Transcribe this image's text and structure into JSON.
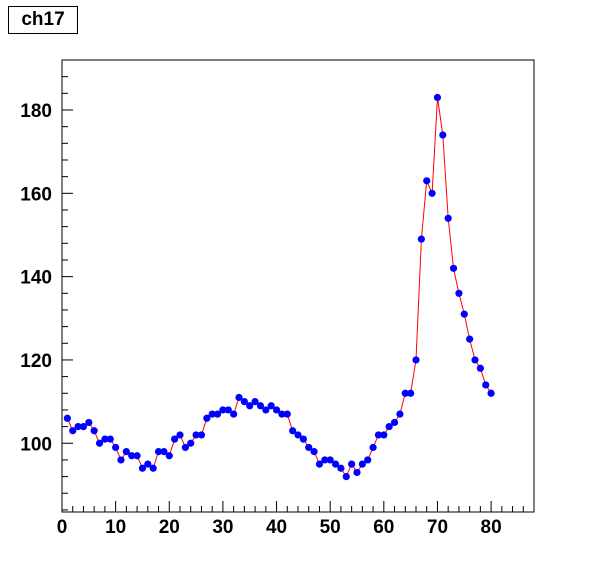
{
  "chart_data": {
    "type": "scatter",
    "title": "ch17",
    "xlabel": "",
    "ylabel": "",
    "xlim": [
      0,
      88
    ],
    "ylim": [
      83.5,
      192
    ],
    "x_ticks": [
      0,
      10,
      20,
      30,
      40,
      50,
      60,
      70,
      80
    ],
    "y_ticks": [
      100,
      120,
      140,
      160,
      180
    ],
    "grid": false,
    "legend": "none",
    "marker_color": "#0000ff",
    "line_color": "#ff0000",
    "series": [
      {
        "x": [
          1,
          2,
          3,
          4,
          5,
          6,
          7,
          8,
          9,
          10,
          11,
          12,
          13,
          14,
          15,
          16,
          17,
          18,
          19,
          20,
          21,
          22,
          23,
          24,
          25,
          26,
          27,
          28,
          29,
          30,
          31,
          32,
          33,
          34,
          35,
          36,
          37,
          38,
          39,
          40,
          41,
          42,
          43,
          44,
          45,
          46,
          47,
          48,
          49,
          50,
          51,
          52,
          53,
          54,
          55,
          56,
          57,
          58,
          59,
          60,
          61,
          62,
          63,
          64,
          65,
          66,
          67,
          68,
          69,
          70,
          71,
          72,
          73,
          74,
          75,
          76,
          77,
          78,
          79,
          80
        ],
        "values": [
          106,
          103,
          104,
          104,
          105,
          103,
          100,
          101,
          101,
          99,
          96,
          98,
          97,
          97,
          94,
          95,
          94,
          98,
          98,
          97,
          101,
          102,
          99,
          100,
          102,
          102,
          106,
          107,
          107,
          108,
          108,
          107,
          111,
          110,
          109,
          110,
          109,
          108,
          109,
          108,
          107,
          107,
          103,
          102,
          101,
          99,
          98,
          95,
          96,
          96,
          95,
          94,
          92,
          95,
          93,
          95,
          96,
          99,
          102,
          102,
          104,
          105,
          107,
          112,
          112,
          120,
          149,
          163,
          160,
          183,
          174,
          154,
          142,
          136,
          131,
          125,
          120,
          118,
          114,
          112
        ]
      }
    ]
  }
}
